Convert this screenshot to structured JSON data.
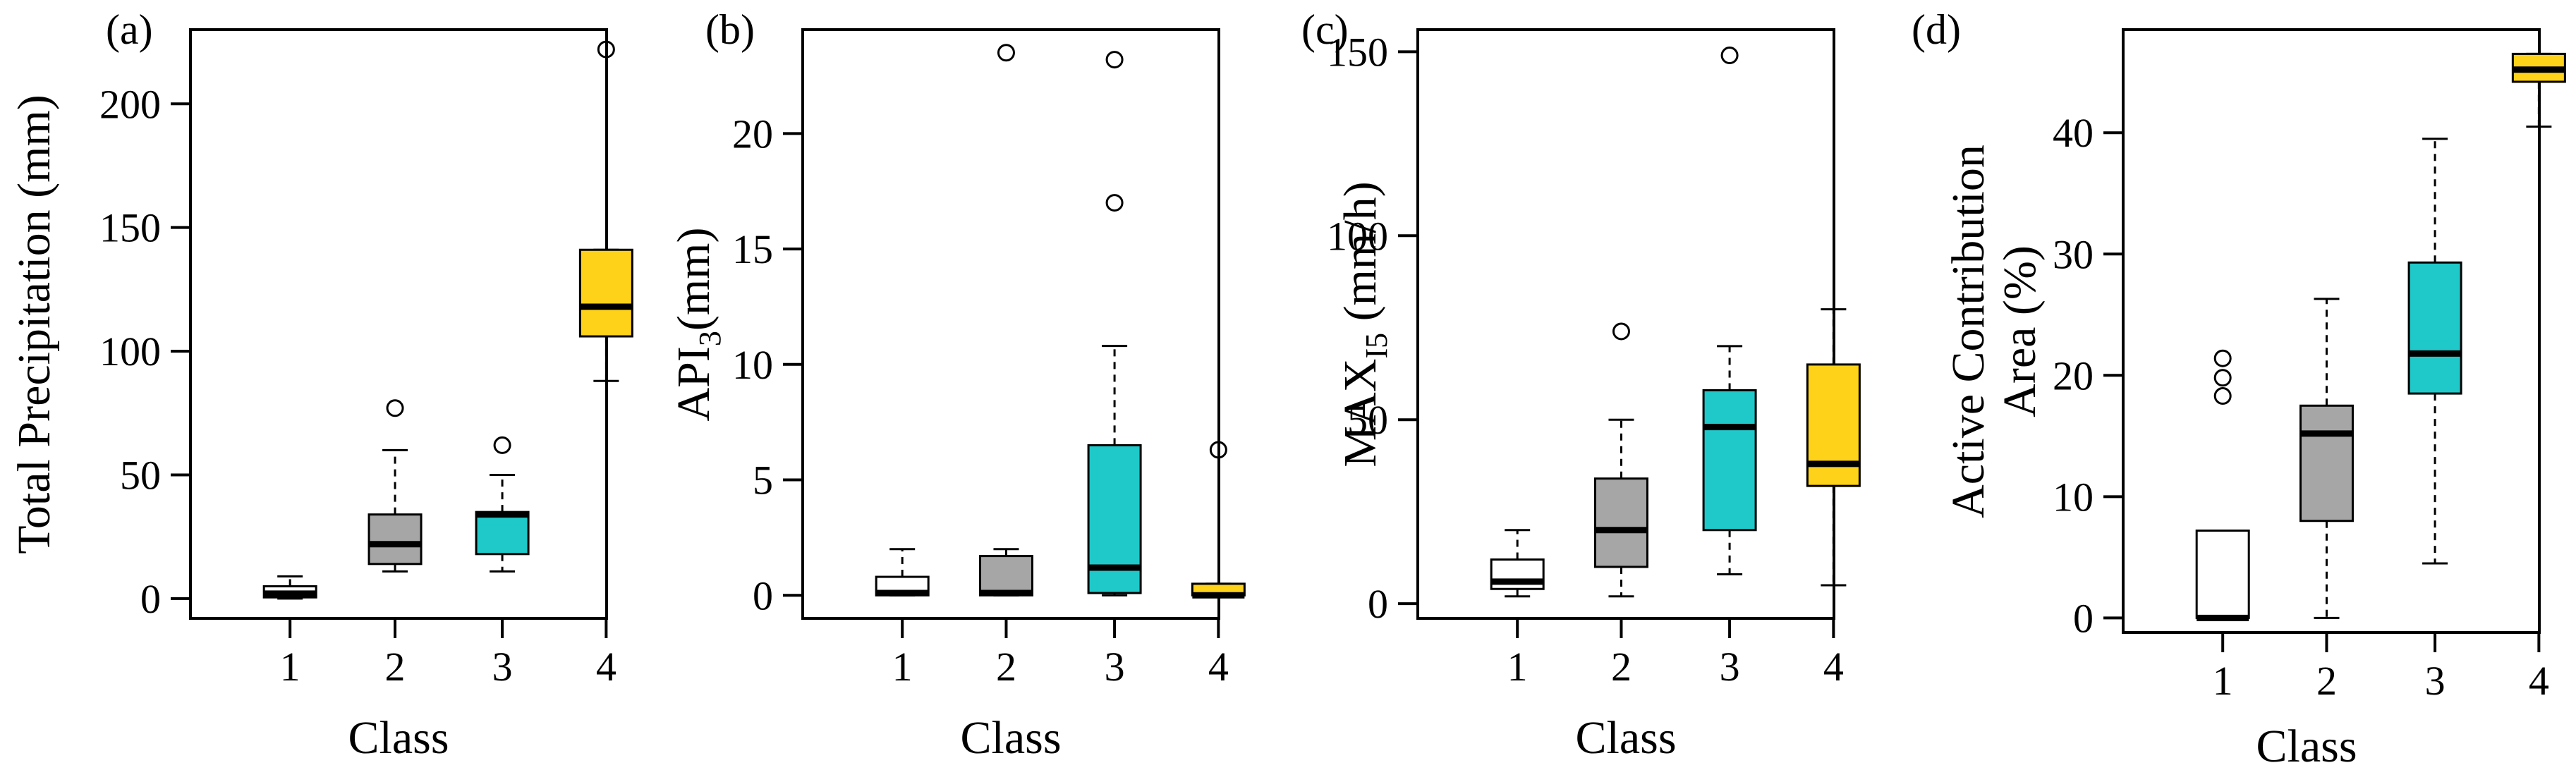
{
  "colors": {
    "class_1": "#ffffff",
    "class_2": "#a6a6a6",
    "class_3": "#1fc9c9",
    "class_4": "#ffd21a",
    "median": "#000000",
    "outline": "#000000"
  },
  "chart_data": [
    {
      "type": "box",
      "panel": "(a)",
      "xlabel": "Class",
      "ylabel": "Total Precipitation (mm)",
      "ylabel_sub": "",
      "ylabel_tail": "",
      "categories": [
        "1",
        "2",
        "3",
        "4"
      ],
      "yticks": [
        0,
        50,
        100,
        150,
        200
      ],
      "ylim": [
        -8,
        230
      ],
      "boxes": [
        {
          "class": "1",
          "whisker_low": 0,
          "q1": 0.5,
          "median": 2,
          "q3": 5,
          "whisker_high": 9,
          "outliers": []
        },
        {
          "class": "2",
          "whisker_low": 11,
          "q1": 14,
          "median": 22,
          "q3": 34,
          "whisker_high": 60,
          "outliers": [
            77
          ]
        },
        {
          "class": "3",
          "whisker_low": 11,
          "q1": 18,
          "median": 34,
          "q3": 35,
          "whisker_high": 50,
          "outliers": [
            62
          ]
        },
        {
          "class": "4",
          "whisker_low": 88,
          "q1": 106,
          "median": 118,
          "q3": 141,
          "whisker_high": 141,
          "outliers": [
            222
          ]
        }
      ]
    },
    {
      "type": "box",
      "panel": "(b)",
      "xlabel": "Class",
      "ylabel": "API",
      "ylabel_sub": "3",
      "ylabel_tail": "(mm)",
      "categories": [
        "1",
        "2",
        "3",
        "4"
      ],
      "yticks": [
        0,
        5,
        10,
        15,
        20
      ],
      "ylim": [
        -1,
        24.5
      ],
      "boxes": [
        {
          "class": "1",
          "whisker_low": 0,
          "q1": 0,
          "median": 0.1,
          "q3": 0.8,
          "whisker_high": 2,
          "outliers": []
        },
        {
          "class": "2",
          "whisker_low": 0,
          "q1": 0,
          "median": 0.1,
          "q3": 1.7,
          "whisker_high": 2,
          "outliers": [
            23.5
          ]
        },
        {
          "class": "3",
          "whisker_low": 0,
          "q1": 0.1,
          "median": 1.2,
          "q3": 6.5,
          "whisker_high": 10.8,
          "outliers": [
            17,
            23.2
          ]
        },
        {
          "class": "4",
          "whisker_low": 0,
          "q1": 0,
          "median": 0,
          "q3": 0.5,
          "whisker_high": 0.5,
          "outliers": [
            6.3
          ]
        }
      ]
    },
    {
      "type": "box",
      "panel": "(c)",
      "xlabel": "Class",
      "ylabel": "MAX",
      "ylabel_sub": "I5",
      "ylabel_tail": " (mm/h)",
      "categories": [
        "1",
        "2",
        "3",
        "4"
      ],
      "yticks": [
        0,
        50,
        100,
        150
      ],
      "ylim": [
        -4,
        156
      ],
      "boxes": [
        {
          "class": "1",
          "whisker_low": 2,
          "q1": 4,
          "median": 6,
          "q3": 12,
          "whisker_high": 20,
          "outliers": []
        },
        {
          "class": "2",
          "whisker_low": 2,
          "q1": 10,
          "median": 20,
          "q3": 34,
          "whisker_high": 50,
          "outliers": [
            74
          ]
        },
        {
          "class": "3",
          "whisker_low": 8,
          "q1": 20,
          "median": 48,
          "q3": 58,
          "whisker_high": 70,
          "outliers": [
            149
          ]
        },
        {
          "class": "4",
          "whisker_low": 5,
          "q1": 32,
          "median": 38,
          "q3": 65,
          "whisker_high": 80,
          "outliers": []
        }
      ]
    },
    {
      "type": "box",
      "panel": "(d)",
      "xlabel": "Class",
      "ylabel": "Active Contribution",
      "ylabel2": "Area (%)",
      "ylabel_sub": "",
      "ylabel_tail": "",
      "categories": [
        "1",
        "2",
        "3",
        "4"
      ],
      "yticks": [
        0,
        10,
        20,
        30,
        40
      ],
      "ylim": [
        -1.2,
        48.5
      ],
      "boxes": [
        {
          "class": "1",
          "whisker_low": 0,
          "q1": 0,
          "median": 0,
          "q3": 7.2,
          "whisker_high": 7.2,
          "outliers": [
            18.3,
            19.8,
            21.4
          ]
        },
        {
          "class": "2",
          "whisker_low": 0,
          "q1": 8,
          "median": 15.2,
          "q3": 17.5,
          "whisker_high": 26.3,
          "outliers": []
        },
        {
          "class": "3",
          "whisker_low": 4.5,
          "q1": 18.5,
          "median": 21.8,
          "q3": 29.3,
          "whisker_high": 39.5,
          "outliers": []
        },
        {
          "class": "4",
          "whisker_low": 40.5,
          "q1": 44.2,
          "median": 45.2,
          "q3": 46.5,
          "whisker_high": 46.5,
          "outliers": []
        }
      ]
    }
  ]
}
